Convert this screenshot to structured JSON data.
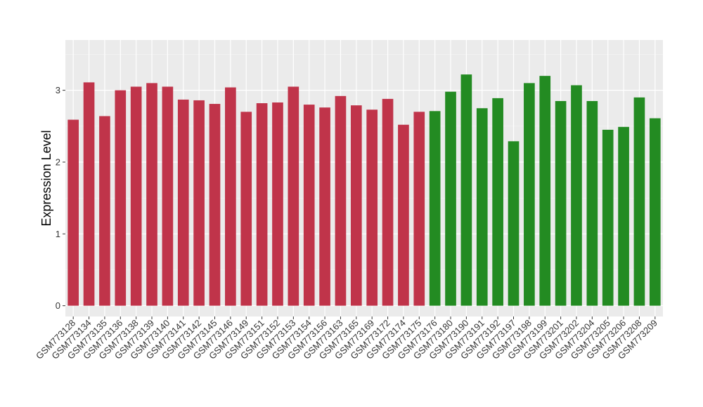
{
  "chart_data": {
    "type": "bar",
    "title": "",
    "xlabel": "",
    "ylabel": "Expression Level",
    "ylim": [
      -0.15,
      3.7
    ],
    "yticks": [
      0,
      1,
      2,
      3
    ],
    "grid": true,
    "panel_background": "#ebebeb",
    "categories": [
      "GSM773128",
      "GSM773134",
      "GSM773135",
      "GSM773136",
      "GSM773138",
      "GSM773139",
      "GSM773140",
      "GSM773141",
      "GSM773142",
      "GSM773145",
      "GSM773146",
      "GSM773149",
      "GSM773151",
      "GSM773152",
      "GSM773153",
      "GSM773154",
      "GSM773156",
      "GSM773163",
      "GSM773165",
      "GSM773169",
      "GSM773172",
      "GSM773174",
      "GSM773175",
      "GSM773176",
      "GSM773180",
      "GSM773190",
      "GSM773191",
      "GSM773192",
      "GSM773197",
      "GSM773198",
      "GSM773199",
      "GSM773201",
      "GSM773202",
      "GSM773204",
      "GSM773205",
      "GSM773206",
      "GSM773208",
      "GSM773209"
    ],
    "values": [
      2.59,
      3.11,
      2.64,
      3.0,
      3.05,
      3.1,
      3.05,
      2.87,
      2.86,
      2.81,
      3.04,
      2.7,
      2.82,
      2.83,
      3.05,
      2.8,
      2.76,
      2.92,
      2.79,
      2.73,
      2.88,
      2.52,
      2.7,
      2.71,
      2.98,
      3.22,
      2.75,
      2.89,
      2.29,
      3.1,
      3.2,
      2.85,
      3.07,
      2.85,
      2.45,
      2.49,
      2.9,
      2.61
    ],
    "colors": [
      "#c0344a",
      "#c0344a",
      "#c0344a",
      "#c0344a",
      "#c0344a",
      "#c0344a",
      "#c0344a",
      "#c0344a",
      "#c0344a",
      "#c0344a",
      "#c0344a",
      "#c0344a",
      "#c0344a",
      "#c0344a",
      "#c0344a",
      "#c0344a",
      "#c0344a",
      "#c0344a",
      "#c0344a",
      "#c0344a",
      "#c0344a",
      "#c0344a",
      "#c0344a",
      "#238b22",
      "#238b22",
      "#238b22",
      "#238b22",
      "#238b22",
      "#238b22",
      "#238b22",
      "#238b22",
      "#238b22",
      "#238b22",
      "#238b22",
      "#238b22",
      "#238b22",
      "#238b22",
      "#238b22"
    ]
  }
}
